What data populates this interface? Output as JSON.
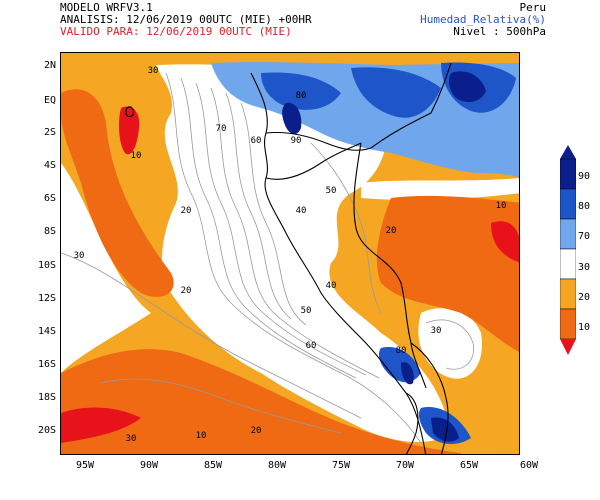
{
  "header": {
    "model": "MODELO WRFV3.1",
    "analysis": "ANALISIS: 12/06/2019 00UTC (MIE) +00HR",
    "valid": "VALIDO PARA: 12/06/2019 00UTC (MIE)",
    "region": "Peru",
    "variable": "Humedad_Relativa(%)",
    "level": "Nivel : 500hPa"
  },
  "axes": {
    "lat_labels": [
      "2N",
      "EQ",
      "2S",
      "4S",
      "6S",
      "8S",
      "10S",
      "12S",
      "14S",
      "16S",
      "18S",
      "20S"
    ],
    "lon_labels": [
      "95W",
      "90W",
      "85W",
      "80W",
      "75W",
      "70W",
      "65W",
      "60W"
    ]
  },
  "colorbar": {
    "labels": [
      "90",
      "80",
      "70",
      "30",
      "20",
      "10"
    ],
    "colors": [
      "#0a1f8c",
      "#1e55c8",
      "#6fa6ec",
      "#ffffff",
      "#f5a623",
      "#ef6a12",
      "#e8121a"
    ]
  },
  "map": {
    "contour_labels": [
      {
        "t": "30"
      },
      {
        "t": "20"
      },
      {
        "t": "10"
      },
      {
        "t": "70"
      },
      {
        "t": "60"
      },
      {
        "t": "50"
      },
      {
        "t": "40"
      },
      {
        "t": "80"
      },
      {
        "t": "90"
      },
      {
        "t": "20"
      },
      {
        "t": "30"
      },
      {
        "t": "10"
      },
      {
        "t": "20"
      },
      {
        "t": "30"
      },
      {
        "t": "40"
      },
      {
        "t": "50"
      },
      {
        "t": "60"
      },
      {
        "t": "80"
      },
      {
        "t": "10"
      },
      {
        "t": "20"
      },
      {
        "t": "30"
      }
    ]
  }
}
